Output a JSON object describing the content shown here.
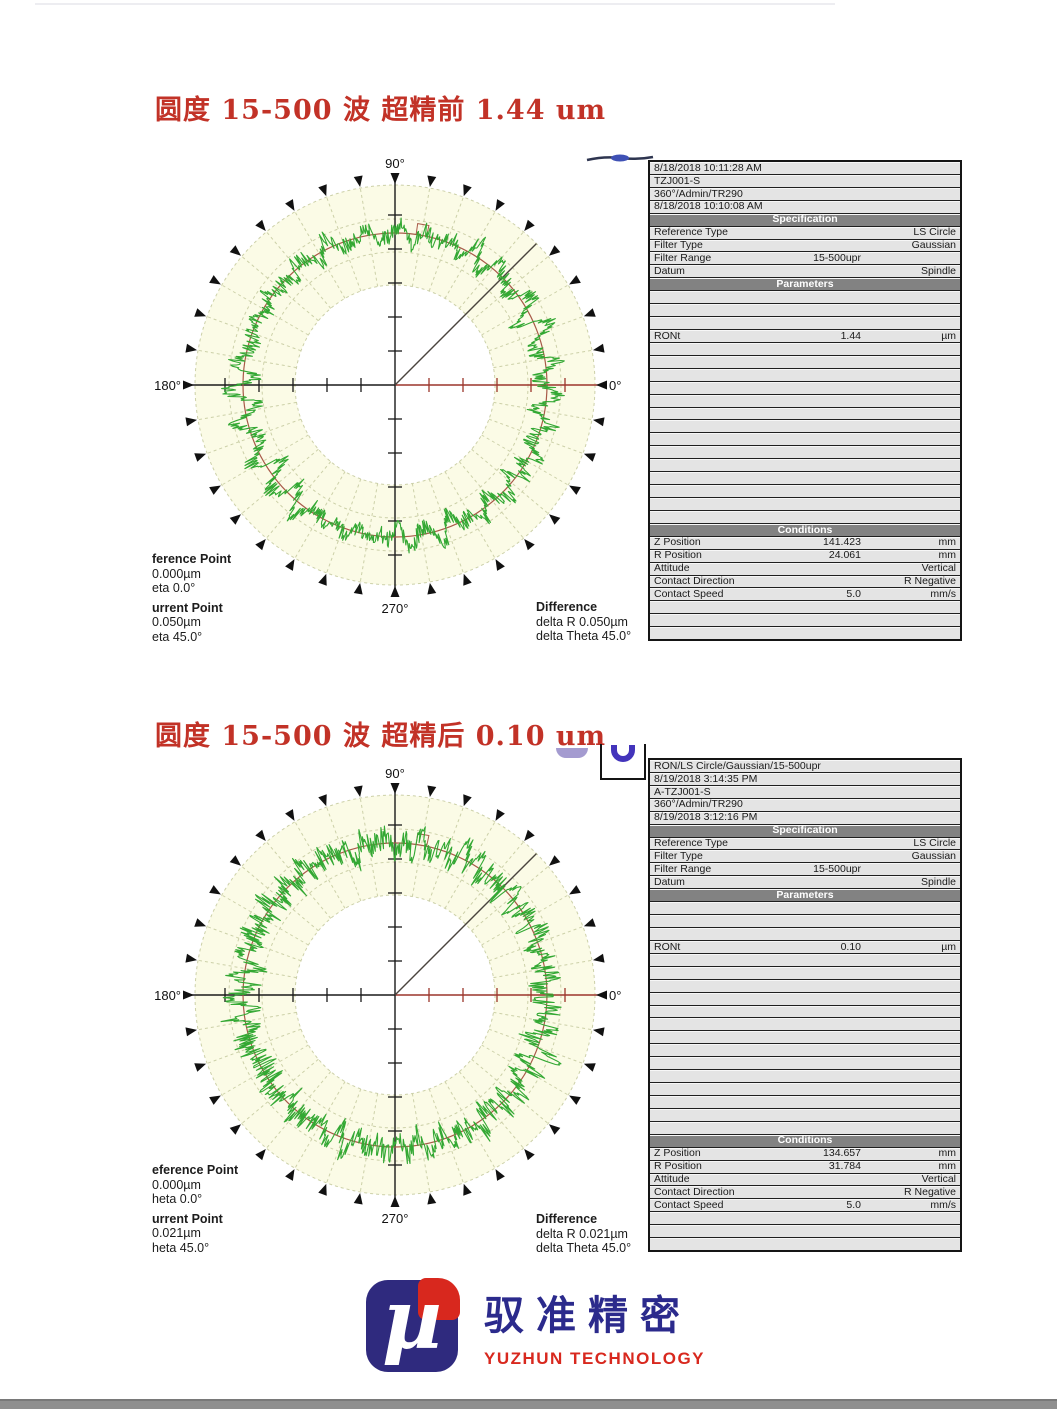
{
  "section1": {
    "title": "圆度 15-500 波 超精前 1.44 um",
    "footer": {
      "ref_title": "ference Point",
      "ref_line1": "0.000µm",
      "ref_line2": "eta 0.0°",
      "cur_title": "urrent Point",
      "cur_line1": "0.050µm",
      "cur_line2": "eta 45.0°",
      "diff_title": "Difference",
      "diff_line1": "delta R 0.050µm",
      "diff_line2": "delta Theta 45.0°"
    }
  },
  "section2": {
    "title": "圆度 15-500 波 超精后 0.10 um",
    "footer": {
      "ref_title": "eference Point",
      "ref_line1": "0.000µm",
      "ref_line2": "heta 0.0°",
      "cur_title": "urrent Point",
      "cur_line1": "0.021µm",
      "cur_line2": "heta 45.0°",
      "diff_title": "Difference",
      "diff_line1": "delta R 0.021µm",
      "diff_line2": "delta Theta 45.0°"
    }
  },
  "tables": [
    {
      "rows": [
        [
          "d",
          "8/18/2018 10:11:28 AM",
          "",
          ""
        ],
        [
          "d",
          "TZJ001-S",
          "",
          ""
        ],
        [
          "d",
          "360°/Admin/TR290",
          "",
          ""
        ],
        [
          "d",
          "8/18/2018 10:10:08 AM",
          "",
          ""
        ],
        [
          "h",
          "Specification"
        ],
        [
          "d",
          "Reference Type",
          "",
          "LS Circle"
        ],
        [
          "d",
          "Filter Type",
          "",
          "Gaussian"
        ],
        [
          "d",
          "Filter Range",
          "15-500upr",
          ""
        ],
        [
          "d",
          "Datum",
          "",
          "Spindle"
        ],
        [
          "h",
          "Parameters"
        ],
        [
          "d"
        ],
        [
          "d"
        ],
        [
          "d"
        ],
        [
          "d",
          "RONt",
          "1.44",
          "µm"
        ],
        [
          "d"
        ],
        [
          "d"
        ],
        [
          "d"
        ],
        [
          "d"
        ],
        [
          "d"
        ],
        [
          "d"
        ],
        [
          "d"
        ],
        [
          "d"
        ],
        [
          "d"
        ],
        [
          "d"
        ],
        [
          "d"
        ],
        [
          "d"
        ],
        [
          "d"
        ],
        [
          "d"
        ],
        [
          "h",
          "Conditions"
        ],
        [
          "d",
          "Z Position",
          "141.423",
          "mm"
        ],
        [
          "d",
          "R Position",
          "24.061",
          "mm"
        ],
        [
          "d",
          "Attitude",
          "",
          "Vertical"
        ],
        [
          "d",
          "Contact Direction",
          "",
          "R Negative"
        ],
        [
          "d",
          "Contact Speed",
          "5.0",
          "mm/s"
        ],
        [
          "d"
        ],
        [
          "d"
        ],
        [
          "d"
        ]
      ]
    },
    {
      "rows": [
        [
          "d",
          "RON/LS Circle/Gaussian/15-500upr",
          "",
          ""
        ],
        [
          "d",
          "8/19/2018 3:14:35 PM",
          "",
          ""
        ],
        [
          "d",
          "A-TZJ001-S",
          "",
          ""
        ],
        [
          "d",
          "360°/Admin/TR290",
          "",
          ""
        ],
        [
          "d",
          "8/19/2018 3:12:16 PM",
          "",
          ""
        ],
        [
          "h",
          "Specification"
        ],
        [
          "d",
          "Reference Type",
          "",
          "LS Circle"
        ],
        [
          "d",
          "Filter Type",
          "",
          "Gaussian"
        ],
        [
          "d",
          "Filter Range",
          "15-500upr",
          ""
        ],
        [
          "d",
          "Datum",
          "",
          "Spindle"
        ],
        [
          "h",
          "Parameters"
        ],
        [
          "d"
        ],
        [
          "d"
        ],
        [
          "d"
        ],
        [
          "d",
          "RONt",
          "0.10",
          "µm"
        ],
        [
          "d"
        ],
        [
          "d"
        ],
        [
          "d"
        ],
        [
          "d"
        ],
        [
          "d"
        ],
        [
          "d"
        ],
        [
          "d"
        ],
        [
          "d"
        ],
        [
          "d"
        ],
        [
          "d"
        ],
        [
          "d"
        ],
        [
          "d"
        ],
        [
          "d"
        ],
        [
          "d"
        ],
        [
          "h",
          "Conditions"
        ],
        [
          "d",
          "Z Position",
          "134.657",
          "mm"
        ],
        [
          "d",
          "R Position",
          "31.784",
          "mm"
        ],
        [
          "d",
          "Attitude",
          "",
          "Vertical"
        ],
        [
          "d",
          "Contact Direction",
          "",
          "R Negative"
        ],
        [
          "d",
          "Contact Speed",
          "5.0",
          "mm/s"
        ],
        [
          "d"
        ],
        [
          "d"
        ],
        [
          "d"
        ]
      ]
    }
  ],
  "chart_data": [
    {
      "type": "polar-roundness",
      "title": "圆度 15-500 波 超精前 1.44 um",
      "RONt_um": 1.44,
      "reference_type": "LS Circle",
      "filter": "Gaussian 15-500upr",
      "angle_labels": {
        "top": "90°",
        "left": "180°",
        "right": "0°",
        "bottom": "270°"
      },
      "grid": {
        "ring_r_frac": [
          0.5,
          0.665,
          0.83,
          1.0
        ],
        "spoke_step_deg": 10,
        "arrow_step_deg": 10
      },
      "reference_circle_r_frac": 0.76,
      "marker_line_deg": 45,
      "trace": {
        "color": "#33a833",
        "mean_r_frac": 0.76,
        "amp_frac": 0.048,
        "jitter_frac": 0.042,
        "seed": 11
      },
      "colors": {
        "annulus": "#fbfbe6",
        "grid": "#ccd0a8",
        "axis": "#1a1a1a",
        "axis_red": "#9c352b",
        "ref_circle": "#a85948"
      }
    },
    {
      "type": "polar-roundness",
      "title": "圆度 15-500 波 超精后 0.10 um",
      "RONt_um": 0.1,
      "reference_type": "LS Circle",
      "filter": "Gaussian 15-500upr",
      "angle_labels": {
        "top": "90°",
        "left": "180°",
        "right": "0°",
        "bottom": "270°"
      },
      "grid": {
        "ring_r_frac": [
          0.5,
          0.665,
          0.83,
          1.0
        ],
        "spoke_step_deg": 10,
        "arrow_step_deg": 10
      },
      "reference_circle_r_frac": 0.76,
      "marker_line_deg": 45,
      "trace": {
        "color": "#33a833",
        "mean_r_frac": 0.76,
        "amp_frac": 0.05,
        "jitter_frac": 0.06,
        "seed": 42
      },
      "colors": {
        "annulus": "#fbfbe6",
        "grid": "#ccd0a8",
        "axis": "#1a1a1a",
        "axis_red": "#9c352b",
        "ref_circle": "#a85948"
      }
    }
  ],
  "logo": {
    "cn": "驭准精密",
    "en": "YUZHUN TECHNOLOGY"
  }
}
